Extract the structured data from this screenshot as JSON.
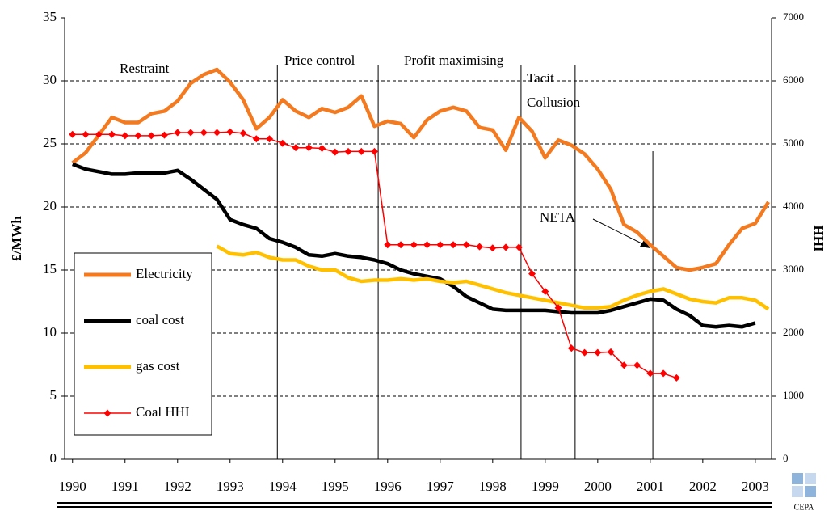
{
  "chart_data": {
    "type": "line",
    "y_label": "£/MWh",
    "y2_label": "HHI",
    "x": [
      1990,
      1990.25,
      1990.5,
      1990.75,
      1991,
      1991.25,
      1991.5,
      1991.75,
      1992,
      1992.25,
      1992.5,
      1992.75,
      1993,
      1993.25,
      1993.5,
      1993.75,
      1994,
      1994.25,
      1994.5,
      1994.75,
      1995,
      1995.25,
      1995.5,
      1995.75,
      1996,
      1996.25,
      1996.5,
      1996.75,
      1997,
      1997.25,
      1997.5,
      1997.75,
      1998,
      1998.25,
      1998.5,
      1998.75,
      1999,
      1999.25,
      1999.5,
      1999.75,
      2000,
      2000.25,
      2000.5,
      2000.75,
      2001,
      2001.25,
      2001.5,
      2001.75,
      2002,
      2002.25,
      2002.5,
      2002.75,
      2003,
      2003.25
    ],
    "xlim": [
      1989.85,
      2003.31
    ],
    "xticks": [
      1990,
      1991,
      1992,
      1993,
      1994,
      1995,
      1996,
      1997,
      1998,
      1999,
      2000,
      2001,
      2002,
      2003
    ],
    "ylim": [
      0,
      35
    ],
    "yticks": [
      0,
      5,
      10,
      15,
      20,
      25,
      30,
      35
    ],
    "y2lim": [
      0,
      7000
    ],
    "y2ticks": [
      0,
      1000,
      2000,
      3000,
      4000,
      5000,
      6000,
      7000
    ],
    "grid": true,
    "series": [
      {
        "name": "Electricity",
        "color": "#f47a20",
        "values": [
          23.5,
          24.3,
          25.7,
          27.1,
          26.7,
          26.7,
          27.4,
          27.6,
          28.4,
          29.8,
          30.5,
          30.9,
          29.9,
          28.5,
          26.2,
          27.1,
          28.5,
          27.6,
          27.1,
          27.8,
          27.5,
          27.9,
          28.8,
          26.4,
          26.8,
          26.6,
          25.5,
          26.9,
          27.6,
          27.9,
          27.6,
          26.3,
          26.1,
          24.5,
          27.1,
          26.0,
          23.9,
          25.3,
          24.9,
          24.2,
          23.0,
          21.4,
          18.6,
          18.0,
          17.0,
          16.1,
          15.2,
          15.0,
          15.2,
          15.5,
          17.0,
          18.3,
          18.7,
          20.4
        ]
      },
      {
        "name": "coal cost",
        "color": "#000000",
        "values": [
          23.4,
          23.0,
          22.8,
          22.6,
          22.6,
          22.7,
          22.7,
          22.7,
          22.9,
          22.2,
          21.4,
          20.6,
          19.0,
          18.6,
          18.3,
          17.5,
          17.2,
          16.8,
          16.2,
          16.1,
          16.3,
          16.1,
          16.0,
          15.8,
          15.5,
          15.0,
          14.7,
          14.5,
          14.3,
          13.7,
          12.9,
          12.4,
          11.9,
          11.8,
          11.8,
          11.8,
          11.8,
          11.7,
          11.6,
          11.6,
          11.6,
          11.8,
          12.1,
          12.4,
          12.7,
          12.6,
          11.9,
          11.4,
          10.6,
          10.5,
          10.6,
          10.5,
          10.8,
          null
        ]
      },
      {
        "name": "gas cost",
        "color": "#ffc000",
        "values": [
          null,
          null,
          null,
          null,
          null,
          null,
          null,
          null,
          null,
          null,
          null,
          16.9,
          16.3,
          16.2,
          16.4,
          16.0,
          15.8,
          15.8,
          15.3,
          15.0,
          15.0,
          14.4,
          14.1,
          14.2,
          14.2,
          14.3,
          14.2,
          14.3,
          14.1,
          14.0,
          14.1,
          13.8,
          13.5,
          13.2,
          13.0,
          12.8,
          12.6,
          12.4,
          12.2,
          12.0,
          12.0,
          12.1,
          12.6,
          13.0,
          13.3,
          13.5,
          13.1,
          12.7,
          12.5,
          12.4,
          12.8,
          12.8,
          12.6,
          11.9
        ]
      },
      {
        "name": "Coal HHI",
        "color": "#ff0000",
        "axis": "y2",
        "marker": "diamond",
        "values": [
          5150,
          5150,
          5150,
          5150,
          5130,
          5130,
          5130,
          5140,
          5180,
          5180,
          5180,
          5180,
          5190,
          5170,
          5080,
          5080,
          5010,
          4940,
          4940,
          4930,
          4870,
          4880,
          4880,
          4880,
          3400,
          3400,
          3400,
          3400,
          3400,
          3400,
          3400,
          3370,
          3350,
          3360,
          3360,
          2940,
          2660,
          2400,
          1760,
          1690,
          1690,
          1700,
          1490,
          1490,
          1360,
          1360,
          1290,
          null,
          null,
          null,
          null,
          null,
          null,
          null
        ]
      }
    ],
    "phase_lines": [
      1993.9,
      1995.82,
      1998.54,
      1999.57,
      2001.05
    ],
    "annotations": [
      "Restraint",
      "Price control",
      "Profit maximising",
      "Tacit",
      "Collusion",
      "NETA"
    ],
    "logo": "CEPA"
  }
}
